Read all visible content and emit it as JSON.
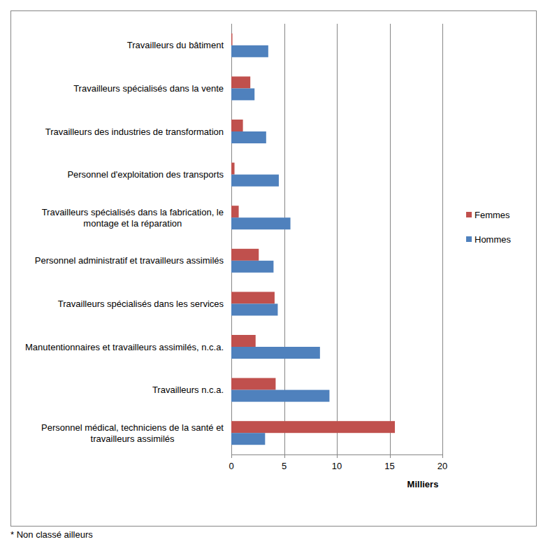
{
  "chart_data": {
    "type": "bar",
    "orientation": "horizontal",
    "categories": [
      "Travailleurs du bâtiment",
      "Travailleurs spécialisés dans la vente",
      "Travailleurs des industries de transformation",
      "Personnel d'exploitation des transports",
      "Travailleurs spécialisés dans la fabrication, le montage et la réparation",
      "Personnel administratif et travailleurs assimilés",
      "Travailleurs spécialisés dans les services",
      "Manutentionnaires et travailleurs assimilés, n.c.a.",
      "Travailleurs n.c.a.",
      "Personnel médical, techniciens de la santé et travailleurs assimilés"
    ],
    "series": [
      {
        "name": "Femmes",
        "color": "#c0504d",
        "values": [
          0.1,
          1.8,
          1.1,
          0.3,
          0.7,
          2.6,
          4.1,
          2.3,
          4.2,
          15.5
        ]
      },
      {
        "name": "Hommes",
        "color": "#4f81bd",
        "values": [
          3.5,
          2.2,
          3.3,
          4.5,
          5.6,
          4.0,
          4.4,
          8.4,
          9.3,
          3.2
        ]
      }
    ],
    "x_label": "Milliers",
    "xlim": [
      0,
      20
    ],
    "xticks": [
      0,
      5,
      10,
      15,
      20
    ],
    "grid": true,
    "legend": "right",
    "annotations": [
      "* Non classé ailleurs"
    ]
  }
}
